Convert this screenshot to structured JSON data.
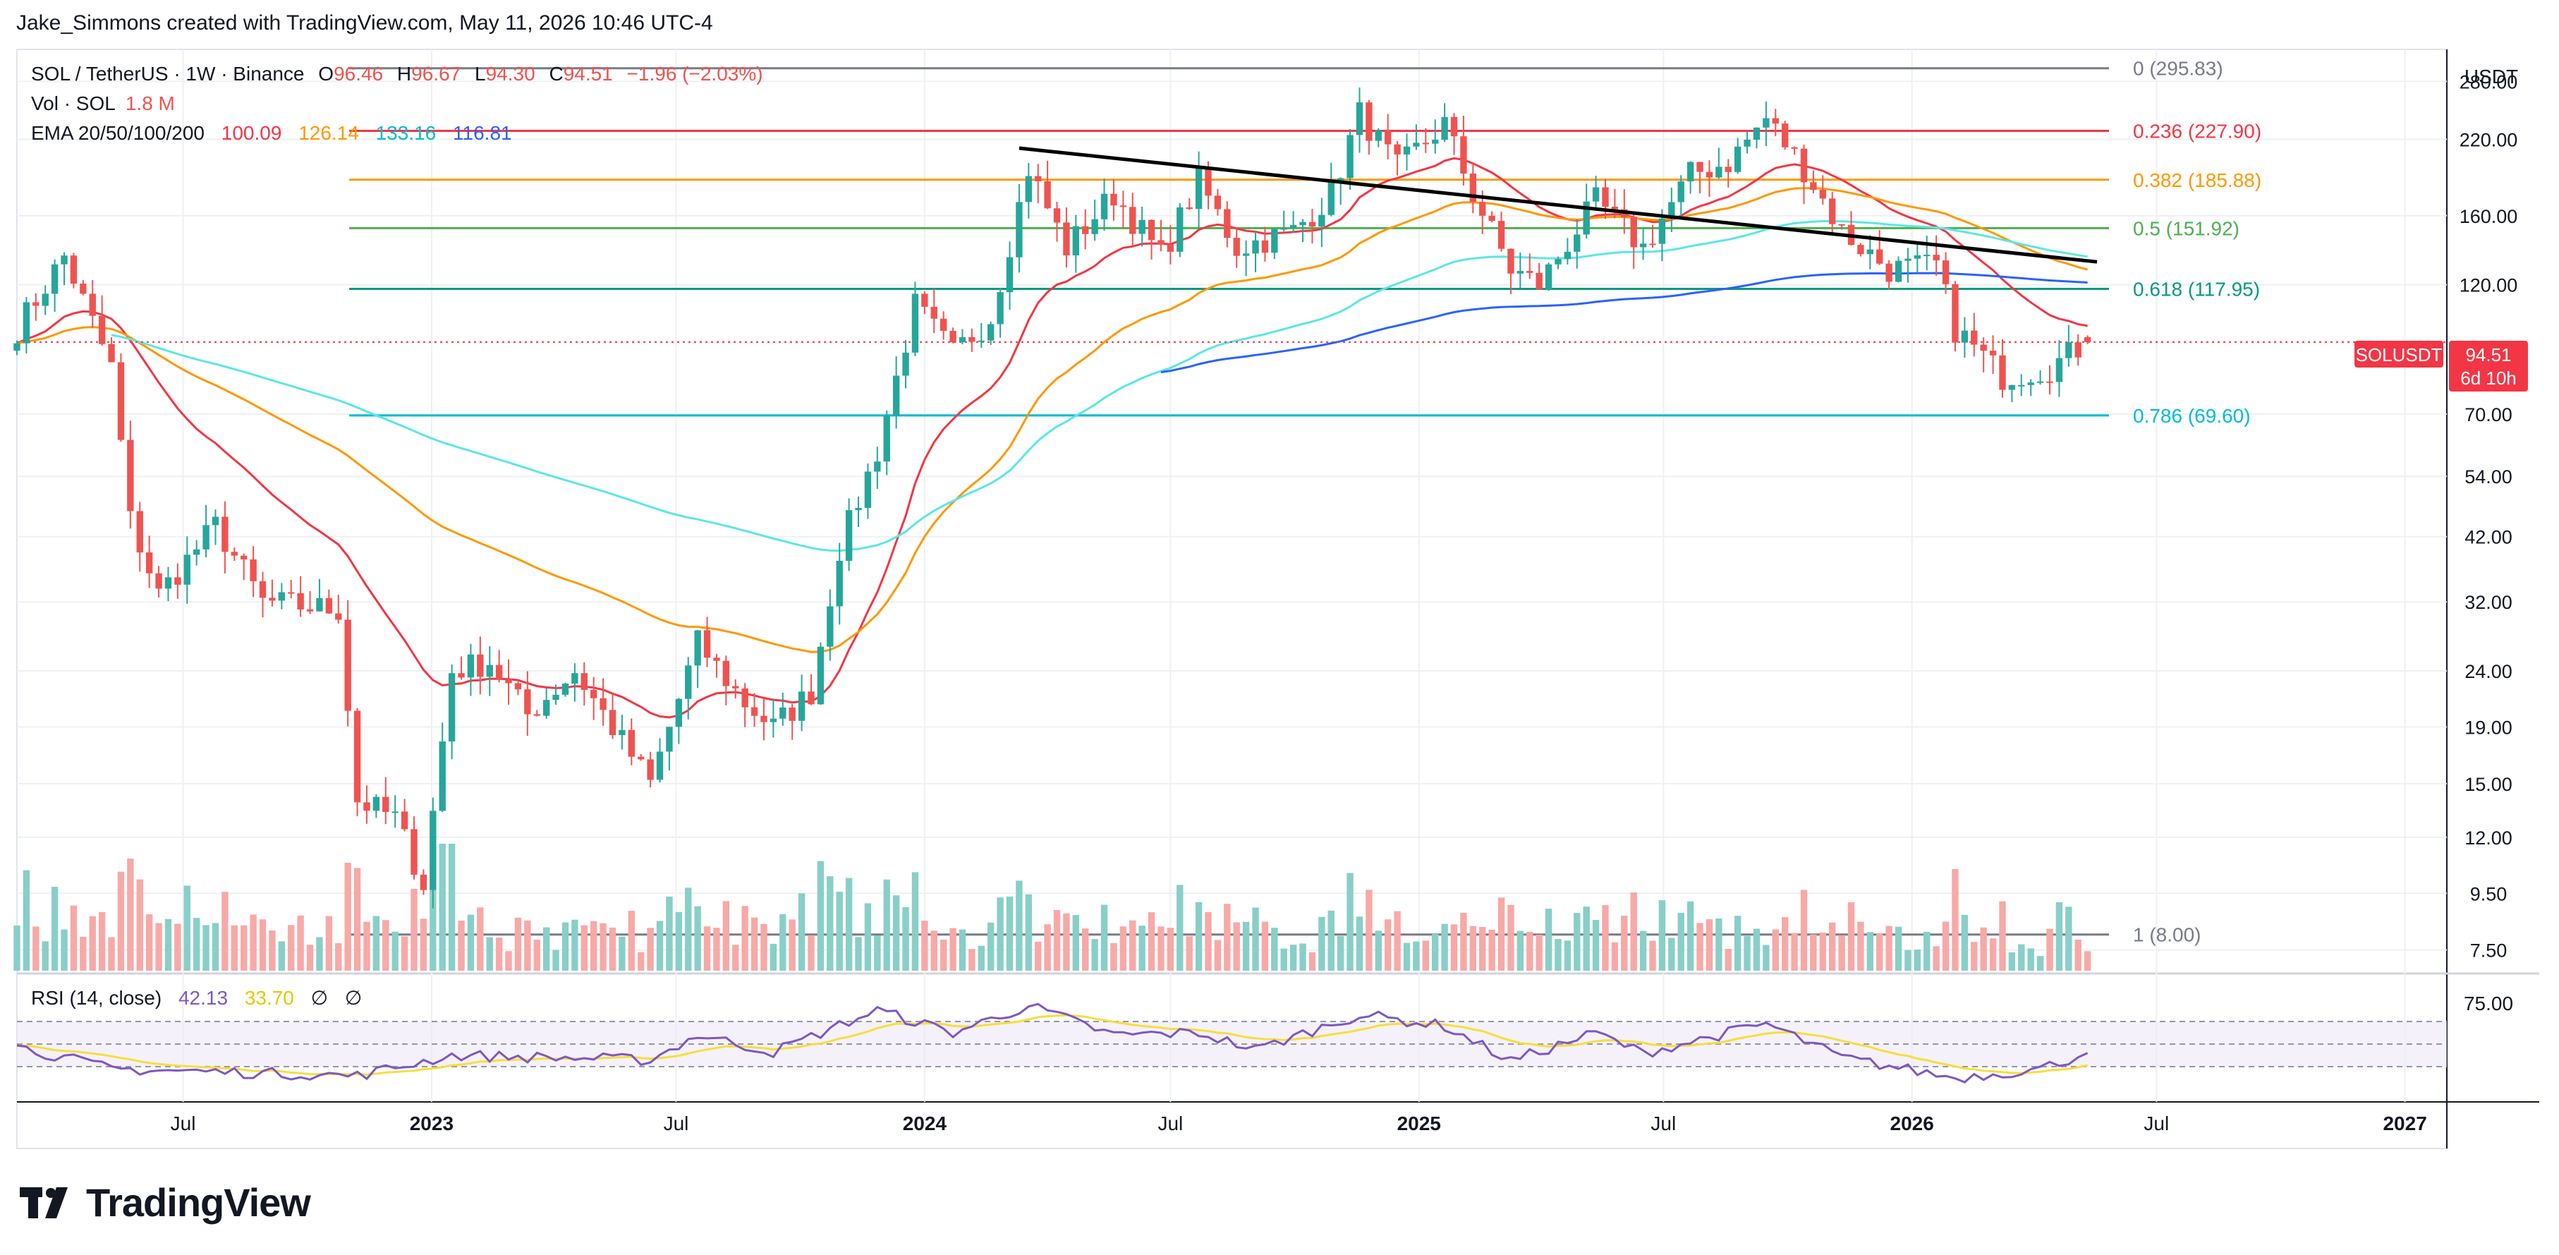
{
  "header": {
    "caption": "Jake_Simmons created with TradingView.com, May 11, 2026 10:46 UTC-4"
  },
  "legend": {
    "symbol": "SOL / TetherUS · 1W · Binance",
    "o_label": "O",
    "o_value": "96.46",
    "h_label": "H",
    "h_value": "96.67",
    "l_label": "L",
    "l_value": "94.30",
    "c_label": "C",
    "c_value": "94.51",
    "change": "−1.96 (−2.03%)",
    "vol_label": "Vol · SOL",
    "vol_value": "1.8 M",
    "ema_label": "EMA 20/50/100/200",
    "ema20": "100.09",
    "ema50": "126.14",
    "ema100": "133.16",
    "ema200": "116.81"
  },
  "price_scale": {
    "currency": "USDT",
    "ticks": [
      "280.00",
      "220.00",
      "160.00",
      "120.00",
      "70.00",
      "54.00",
      "42.00",
      "32.00",
      "24.00",
      "19.00",
      "15.00",
      "12.00",
      "9.50",
      "7.50"
    ],
    "symbol_badge": "SOLUSDT",
    "last_price": "94.51",
    "countdown": "6d 10h"
  },
  "rsi": {
    "label": "RSI (14, close)",
    "value": "42.13",
    "ma_value": "33.70",
    "icon1": "∅",
    "icon2": "∅",
    "scale_tick": "75.00"
  },
  "time_axis": [
    "Jul",
    "2023",
    "Jul",
    "2024",
    "Jul",
    "2025",
    "Jul",
    "2026",
    "Jul",
    "2027"
  ],
  "footer": {
    "brand": "TradingView"
  },
  "colors": {
    "up": "#26a69a",
    "down": "#ef5350",
    "up_vol": "#88cfc8",
    "down_vol": "#f7a9a7",
    "ema20": "#f23645",
    "ema50": "#ff9800",
    "ema100": "#5ce6e6",
    "ema200": "#2962ff",
    "fib_0": "#787b86",
    "fib_236": "#f23645",
    "fib_382": "#ff9800",
    "fib_5": "#4caf50",
    "fib_618": "#089981",
    "fib_786": "#00bcd4",
    "fib_1": "#787b86",
    "rsi_line": "#7e57c2",
    "rsi_ma": "#f7de3b",
    "trendline": "#000000"
  },
  "chart_data": {
    "type": "candlestick",
    "scale": "log",
    "x_range": [
      "2022-02-28",
      "2027-02-01"
    ],
    "y_range": [
      6.8,
      320
    ],
    "fibonacci": [
      {
        "label": "0 (295.83)",
        "value": 295.83
      },
      {
        "label": "0.236 (227.90)",
        "value": 227.9
      },
      {
        "label": "0.382 (185.88)",
        "value": 185.88
      },
      {
        "label": "0.5 (151.92)",
        "value": 151.92
      },
      {
        "label": "0.618 (117.95)",
        "value": 117.95
      },
      {
        "label": "0.786 (69.60)",
        "value": 69.6
      },
      {
        "label": "1 (8.00)",
        "value": 8.0
      }
    ],
    "fib_start_date": "2022-11-01",
    "trendline": [
      {
        "date": "2024-03-11",
        "price": 212
      },
      {
        "date": "2026-05-18",
        "price": 132
      }
    ],
    "price_anchors": [
      [
        "2022-02-28",
        100
      ],
      [
        "2022-04-04",
        135
      ],
      [
        "2022-05-09",
        85
      ],
      [
        "2022-05-23",
        45
      ],
      [
        "2022-06-13",
        33
      ],
      [
        "2022-07-25",
        44
      ],
      [
        "2022-08-29",
        32
      ],
      [
        "2022-10-24",
        31
      ],
      [
        "2022-11-07",
        14
      ],
      [
        "2022-12-05",
        13
      ],
      [
        "2022-12-26",
        9.9
      ],
      [
        "2023-01-16",
        24
      ],
      [
        "2023-02-13",
        25
      ],
      [
        "2023-03-13",
        20
      ],
      [
        "2023-04-17",
        24
      ],
      [
        "2023-06-12",
        15
      ],
      [
        "2023-07-17",
        27
      ],
      [
        "2023-08-21",
        21
      ],
      [
        "2023-09-11",
        19
      ],
      [
        "2023-10-09",
        22
      ],
      [
        "2023-10-30",
        40
      ],
      [
        "2023-11-27",
        60
      ],
      [
        "2023-12-25",
        110
      ],
      [
        "2024-01-22",
        90
      ],
      [
        "2024-02-19",
        105
      ],
      [
        "2024-03-18",
        195
      ],
      [
        "2024-04-15",
        140
      ],
      [
        "2024-05-20",
        175
      ],
      [
        "2024-06-24",
        135
      ],
      [
        "2024-07-22",
        185
      ],
      [
        "2024-08-19",
        140
      ],
      [
        "2024-09-30",
        150
      ],
      [
        "2024-10-28",
        175
      ],
      [
        "2024-11-18",
        245
      ],
      [
        "2024-12-16",
        195
      ],
      [
        "2025-01-20",
        235
      ],
      [
        "2025-02-10",
        175
      ],
      [
        "2025-03-10",
        128
      ],
      [
        "2025-03-31",
        120
      ],
      [
        "2025-05-12",
        170
      ],
      [
        "2025-06-16",
        140
      ],
      [
        "2025-07-21",
        190
      ],
      [
        "2025-08-18",
        200
      ],
      [
        "2025-09-15",
        240
      ],
      [
        "2025-10-13",
        195
      ],
      [
        "2025-11-10",
        150
      ],
      [
        "2025-12-15",
        128
      ],
      [
        "2026-01-19",
        130
      ],
      [
        "2026-02-02",
        100
      ],
      [
        "2026-03-09",
        82
      ],
      [
        "2026-04-13",
        85
      ],
      [
        "2026-05-11",
        94.51
      ]
    ],
    "ema200_start": "2024-06-24",
    "rsi_anchors": [
      [
        "2022-02-28",
        48
      ],
      [
        "2022-05-09",
        28
      ],
      [
        "2022-11-07",
        22
      ],
      [
        "2023-01-16",
        40
      ],
      [
        "2023-06-12",
        36
      ],
      [
        "2023-07-17",
        58
      ],
      [
        "2023-09-11",
        43
      ],
      [
        "2023-11-27",
        80
      ],
      [
        "2024-01-22",
        60
      ],
      [
        "2024-03-18",
        84
      ],
      [
        "2024-05-20",
        58
      ],
      [
        "2024-07-22",
        60
      ],
      [
        "2024-09-02",
        45
      ],
      [
        "2024-11-18",
        76
      ],
      [
        "2025-01-20",
        66
      ],
      [
        "2025-03-10",
        35
      ],
      [
        "2025-05-12",
        60
      ],
      [
        "2025-06-16",
        42
      ],
      [
        "2025-09-15",
        68
      ],
      [
        "2025-11-10",
        38
      ],
      [
        "2026-02-02",
        20
      ],
      [
        "2026-04-06",
        28
      ],
      [
        "2026-05-11",
        42.13
      ]
    ]
  }
}
